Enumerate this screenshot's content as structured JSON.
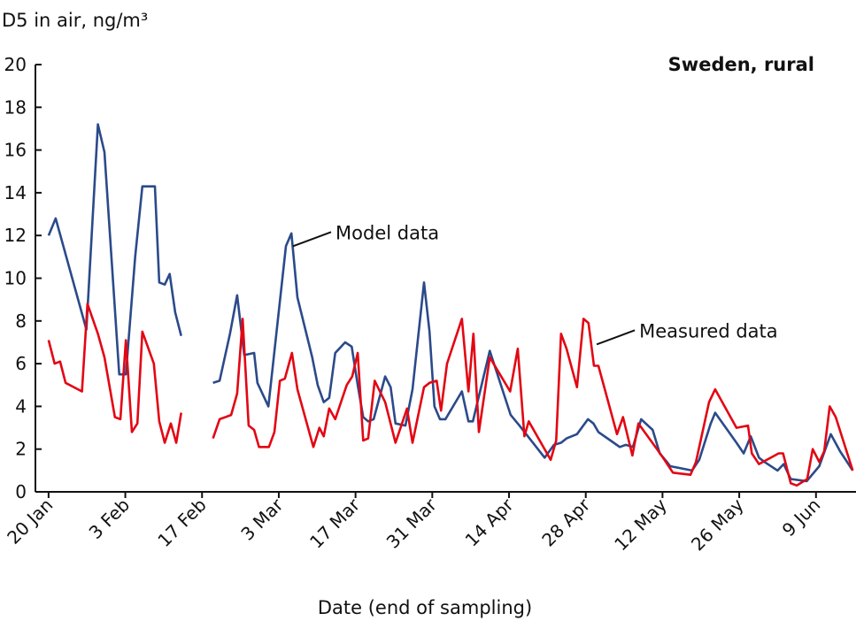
{
  "chart_data": {
    "type": "line",
    "title": "Sweden, rural",
    "ylabel": "D5 in air, ng/m³",
    "xlabel": "Date (end of sampling)",
    "x_unit": "days since 20 Jan",
    "xlim": [
      -2.4,
      147.3
    ],
    "ylim": [
      0,
      20
    ],
    "grid": false,
    "x_ticks": [
      {
        "day": 0,
        "label": "20 Jan"
      },
      {
        "day": 14,
        "label": "3 Feb"
      },
      {
        "day": 28,
        "label": "17 Feb"
      },
      {
        "day": 42,
        "label": "3 Mar"
      },
      {
        "day": 56,
        "label": "17 Mar"
      },
      {
        "day": 70,
        "label": "31 Mar"
      },
      {
        "day": 84,
        "label": "14 Apr"
      },
      {
        "day": 98,
        "label": "28 Apr"
      },
      {
        "day": 112,
        "label": "12 May"
      },
      {
        "day": 126,
        "label": "26 May"
      },
      {
        "day": 140,
        "label": "9 Jun"
      }
    ],
    "y_ticks": [
      "0",
      "2",
      "4",
      "6",
      "8",
      "10",
      "12",
      "14",
      "16",
      "18",
      "20"
    ],
    "series": [
      {
        "name": "Model data",
        "color": "#2b4a8a",
        "segments": [
          [
            [
              0,
              12.0
            ],
            [
              1.3,
              12.8
            ],
            [
              6.9,
              7.6
            ],
            [
              9.0,
              17.2
            ],
            [
              10.2,
              15.9
            ],
            [
              12.9,
              5.5
            ],
            [
              14.1,
              5.5
            ],
            [
              15.8,
              11.0
            ],
            [
              17.1,
              14.3
            ],
            [
              19.4,
              14.3
            ],
            [
              20.2,
              9.8
            ],
            [
              21.2,
              9.7
            ],
            [
              22.1,
              10.2
            ],
            [
              23.1,
              8.4
            ],
            [
              24.2,
              7.3
            ]
          ],
          [
            [
              30.0,
              5.1
            ],
            [
              31.2,
              5.2
            ],
            [
              33.1,
              7.4
            ],
            [
              34.4,
              9.2
            ],
            [
              35.7,
              6.4
            ],
            [
              37.5,
              6.5
            ],
            [
              38.1,
              5.1
            ],
            [
              40.1,
              4.0
            ],
            [
              43.3,
              11.5
            ],
            [
              44.3,
              12.1
            ],
            [
              45.4,
              9.1
            ],
            [
              48.1,
              6.3
            ],
            [
              49.1,
              5.0
            ],
            [
              50.2,
              4.2
            ],
            [
              51.2,
              4.4
            ],
            [
              52.3,
              6.5
            ],
            [
              54.1,
              7.0
            ],
            [
              55.3,
              6.8
            ],
            [
              56.4,
              5.0
            ],
            [
              57.4,
              3.5
            ],
            [
              58.3,
              3.3
            ],
            [
              59.3,
              3.4
            ],
            [
              61.4,
              5.4
            ],
            [
              62.4,
              4.9
            ],
            [
              63.3,
              3.2
            ],
            [
              65.1,
              3.1
            ],
            [
              66.4,
              4.8
            ],
            [
              68.5,
              9.8
            ],
            [
              69.5,
              7.5
            ],
            [
              70.4,
              4.0
            ],
            [
              71.4,
              3.4
            ],
            [
              72.4,
              3.4
            ],
            [
              75.4,
              4.7
            ],
            [
              76.6,
              3.3
            ],
            [
              77.4,
              3.3
            ],
            [
              80.5,
              6.6
            ],
            [
              84.3,
              3.6
            ],
            [
              85.9,
              3.1
            ],
            [
              90.5,
              1.6
            ],
            [
              92.2,
              2.2
            ],
            [
              93.5,
              2.3
            ],
            [
              94.5,
              2.5
            ],
            [
              96.4,
              2.7
            ],
            [
              98.4,
              3.4
            ],
            [
              99.4,
              3.2
            ],
            [
              100.3,
              2.8
            ],
            [
              103.1,
              2.3
            ],
            [
              104.2,
              2.1
            ],
            [
              105.3,
              2.2
            ],
            [
              106.6,
              2.1
            ],
            [
              108.1,
              3.4
            ],
            [
              110.2,
              2.9
            ],
            [
              111.5,
              1.8
            ],
            [
              112.8,
              1.4
            ],
            [
              113.4,
              1.2
            ],
            [
              117.4,
              1.0
            ],
            [
              118.7,
              1.5
            ],
            [
              120.8,
              3.2
            ],
            [
              121.6,
              3.7
            ],
            [
              125.5,
              2.3
            ],
            [
              126.8,
              1.8
            ],
            [
              128.1,
              2.6
            ],
            [
              129.6,
              1.6
            ],
            [
              130.6,
              1.4
            ],
            [
              133.0,
              1.0
            ],
            [
              134.1,
              1.3
            ],
            [
              135.4,
              0.6
            ],
            [
              138.3,
              0.5
            ],
            [
              140.6,
              1.2
            ],
            [
              142.7,
              2.7
            ],
            [
              144.4,
              1.9
            ],
            [
              146.7,
              1.0
            ]
          ]
        ]
      },
      {
        "name": "Measured data",
        "color": "#e30613",
        "segments": [
          [
            [
              0,
              7.1
            ],
            [
              1.1,
              6.0
            ],
            [
              2.1,
              6.1
            ],
            [
              3.1,
              5.1
            ],
            [
              6.1,
              4.7
            ],
            [
              7.1,
              8.8
            ],
            [
              9.0,
              7.4
            ],
            [
              10.2,
              6.3
            ],
            [
              12.1,
              3.5
            ],
            [
              13.1,
              3.4
            ],
            [
              14.1,
              7.1
            ],
            [
              15.2,
              2.8
            ],
            [
              16.2,
              3.2
            ],
            [
              17.1,
              7.5
            ],
            [
              19.2,
              6.0
            ],
            [
              20.2,
              3.3
            ],
            [
              21.2,
              2.3
            ],
            [
              22.3,
              3.2
            ],
            [
              23.3,
              2.3
            ],
            [
              24.2,
              3.7
            ]
          ],
          [
            [
              30.0,
              2.5
            ],
            [
              31.2,
              3.4
            ],
            [
              33.3,
              3.6
            ],
            [
              34.4,
              4.6
            ],
            [
              35.4,
              8.1
            ],
            [
              36.5,
              3.1
            ],
            [
              37.5,
              2.9
            ],
            [
              38.4,
              2.1
            ],
            [
              40.2,
              2.1
            ],
            [
              41.2,
              2.8
            ],
            [
              42.2,
              5.2
            ],
            [
              43.1,
              5.3
            ],
            [
              44.4,
              6.5
            ],
            [
              45.4,
              4.8
            ],
            [
              48.3,
              2.1
            ],
            [
              49.4,
              3.0
            ],
            [
              50.2,
              2.6
            ],
            [
              51.2,
              3.9
            ],
            [
              52.3,
              3.4
            ],
            [
              54.4,
              5.0
            ],
            [
              55.4,
              5.4
            ],
            [
              56.4,
              6.5
            ],
            [
              57.4,
              2.4
            ],
            [
              58.3,
              2.5
            ],
            [
              59.5,
              5.2
            ],
            [
              61.4,
              4.2
            ],
            [
              63.3,
              2.3
            ],
            [
              65.4,
              3.9
            ],
            [
              66.4,
              2.3
            ],
            [
              68.5,
              4.9
            ],
            [
              69.5,
              5.1
            ],
            [
              70.8,
              5.2
            ],
            [
              71.6,
              3.8
            ],
            [
              72.7,
              6.0
            ],
            [
              75.4,
              8.1
            ],
            [
              76.6,
              4.7
            ],
            [
              77.5,
              7.4
            ],
            [
              78.5,
              2.8
            ],
            [
              80.5,
              6.3
            ],
            [
              84.2,
              4.7
            ],
            [
              85.6,
              6.7
            ],
            [
              86.8,
              2.6
            ],
            [
              87.6,
              3.3
            ],
            [
              91.6,
              1.5
            ],
            [
              92.6,
              2.4
            ],
            [
              93.5,
              7.4
            ],
            [
              94.5,
              6.7
            ],
            [
              96.4,
              4.9
            ],
            [
              97.6,
              8.1
            ],
            [
              98.5,
              7.9
            ],
            [
              99.5,
              5.9
            ],
            [
              100.3,
              5.9
            ],
            [
              103.7,
              2.7
            ],
            [
              104.8,
              3.5
            ],
            [
              106.5,
              1.7
            ],
            [
              107.6,
              3.2
            ],
            [
              111.0,
              2.0
            ],
            [
              112.1,
              1.6
            ],
            [
              113.9,
              0.9
            ],
            [
              117.1,
              0.8
            ],
            [
              118.1,
              1.4
            ],
            [
              120.5,
              4.2
            ],
            [
              121.6,
              4.8
            ],
            [
              125.5,
              3.0
            ],
            [
              127.6,
              3.1
            ],
            [
              128.3,
              1.8
            ],
            [
              129.6,
              1.3
            ],
            [
              133.2,
              1.8
            ],
            [
              134.0,
              1.8
            ],
            [
              135.4,
              0.4
            ],
            [
              136.5,
              0.3
            ],
            [
              138.4,
              0.6
            ],
            [
              139.4,
              2.0
            ],
            [
              140.6,
              1.4
            ],
            [
              141.5,
              1.9
            ],
            [
              142.5,
              4.0
            ],
            [
              143.6,
              3.5
            ],
            [
              146.7,
              1.0
            ]
          ]
        ]
      }
    ],
    "annotations": [
      {
        "text": "Model data",
        "series": "Model data",
        "at_day": 44.6,
        "at_value": 11.5
      },
      {
        "text": "Measured data",
        "series": "Measured data",
        "at_day": 100.0,
        "at_value": 6.9
      }
    ]
  }
}
